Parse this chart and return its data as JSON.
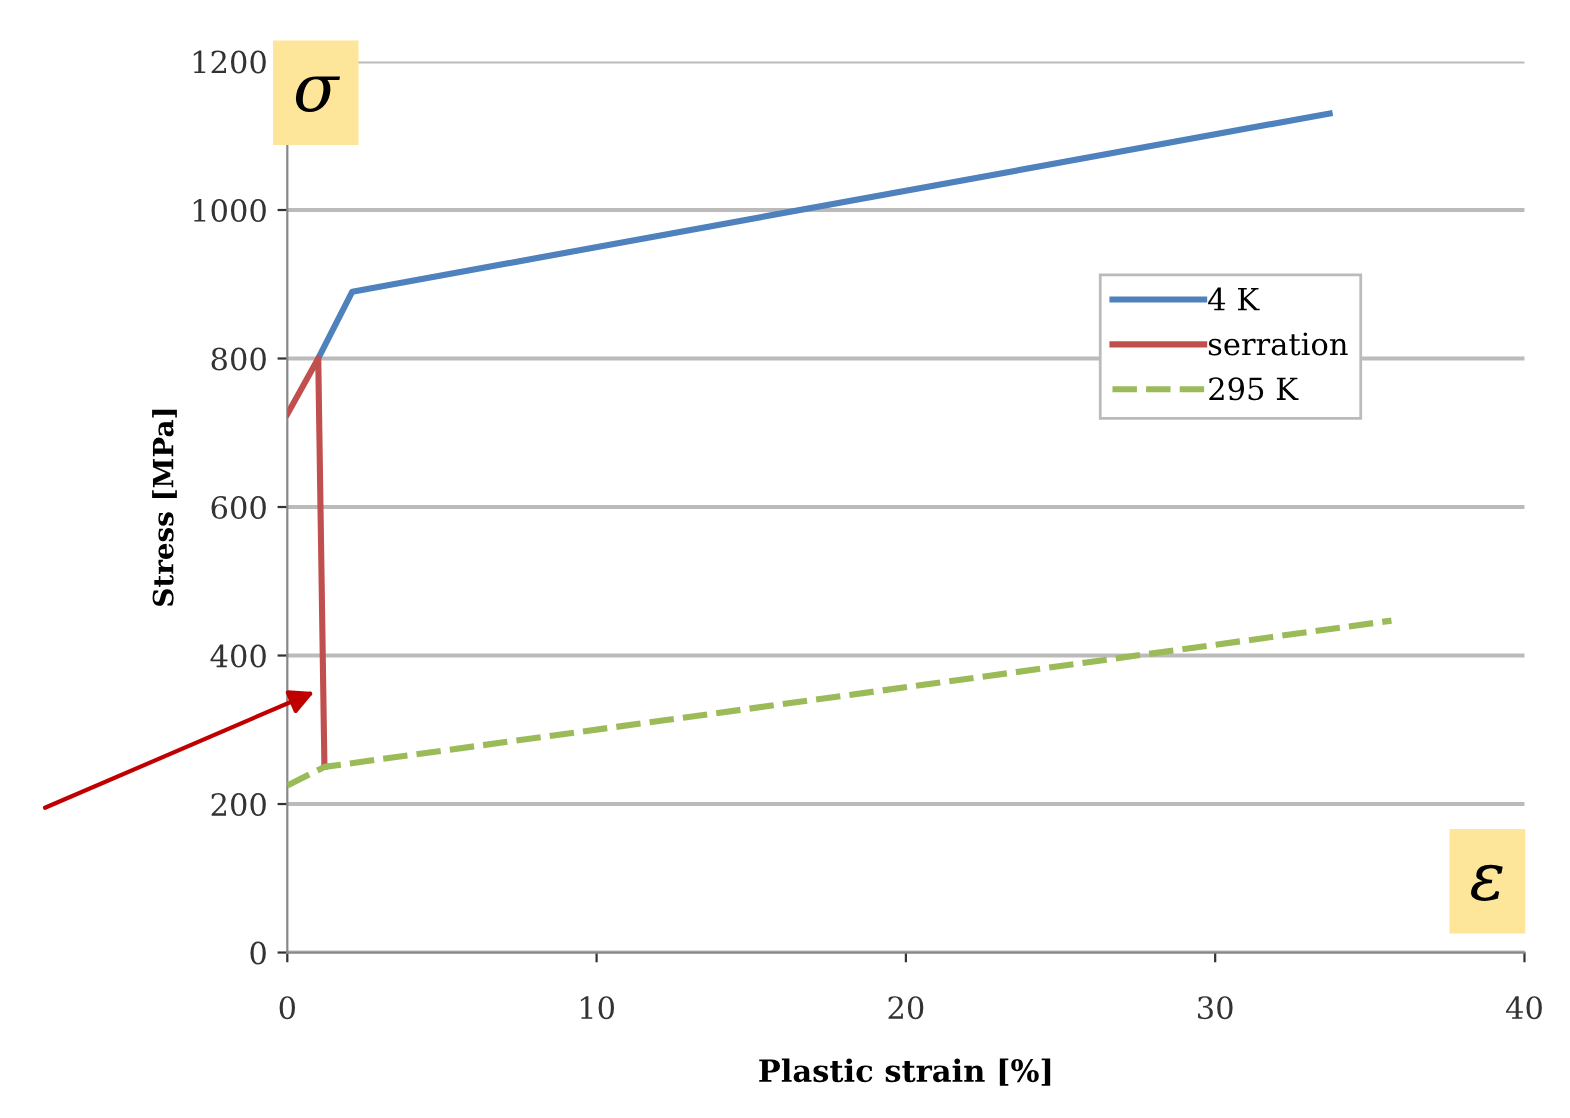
{
  "chart_data": {
    "type": "line",
    "xlabel": "Plastic strain [%]",
    "ylabel": "Stress [MPa]",
    "xlim": [
      0,
      40
    ],
    "xticks": [
      0,
      10,
      20,
      30,
      40
    ],
    "ylim": [
      0,
      1200
    ],
    "yticks": [
      0,
      200,
      400,
      600,
      800,
      1000,
      1200
    ],
    "grid": "y",
    "legend": "right",
    "marker": "none",
    "annotations": [
      "σ",
      "ε"
    ],
    "series": [
      {
        "name": "4 K",
        "color": "#4f81bd",
        "x": [
          1.0,
          2.1,
          33.7
        ],
        "values": [
          800,
          890,
          1130
        ],
        "line_style": "solid"
      },
      {
        "name": "serration",
        "color": "#c0504d",
        "x": [
          0,
          1.0,
          1.2
        ],
        "values": [
          725,
          800,
          250
        ],
        "line_style": "solid"
      },
      {
        "name": "295 K",
        "color": "#9bbb59",
        "x": [
          0,
          1.2,
          35.7
        ],
        "values": [
          225,
          250,
          447
        ],
        "line_style": "dashed"
      }
    ]
  }
}
